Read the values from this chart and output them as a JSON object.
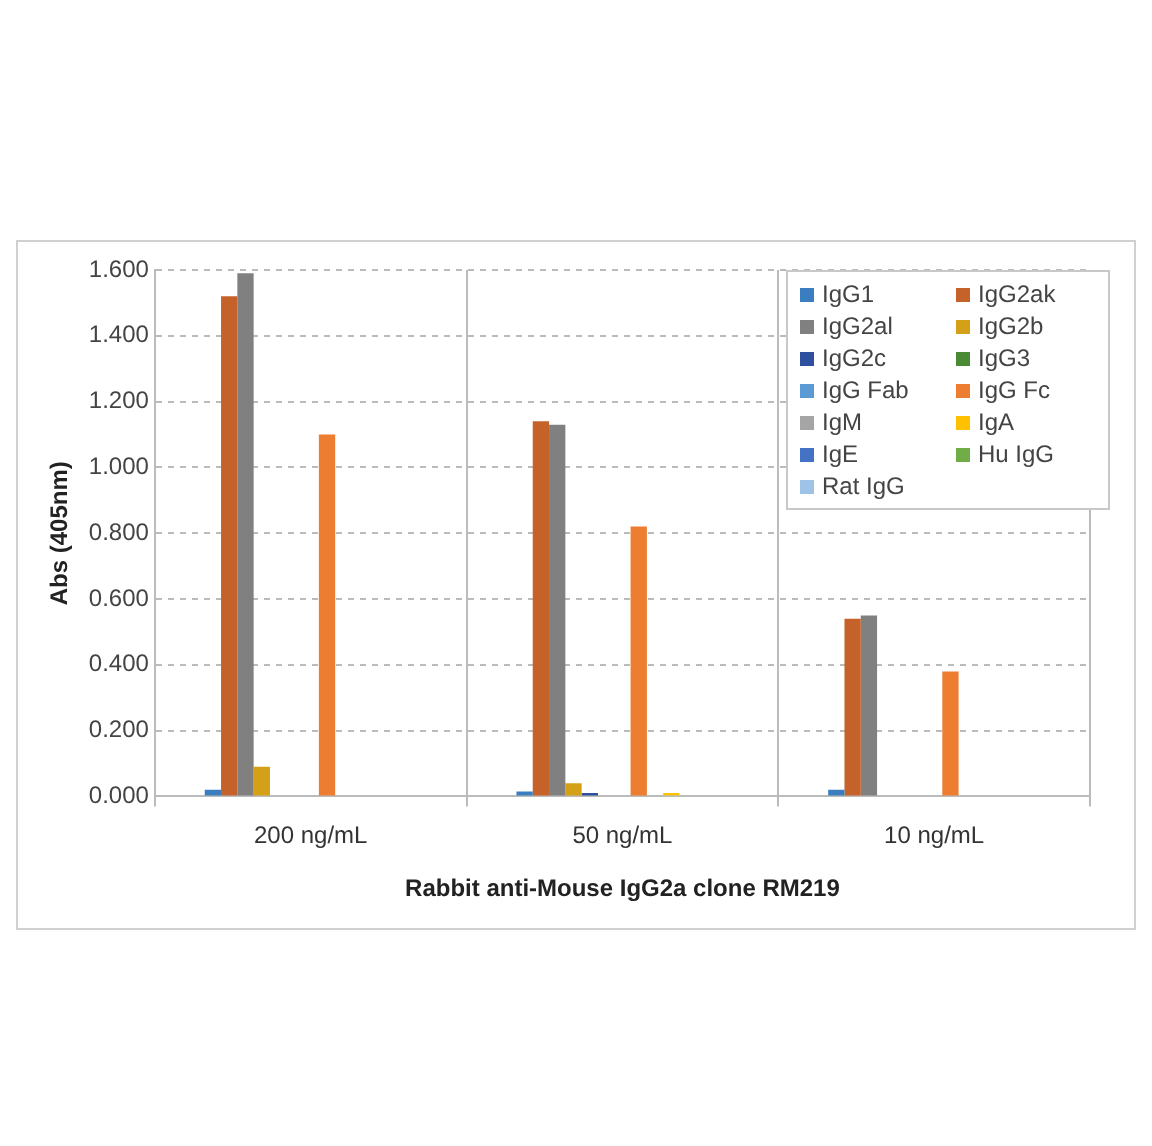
{
  "chart_data": {
    "type": "bar",
    "xlabel": "Rabbit anti-Mouse IgG2a clone RM219",
    "ylabel": "Abs (405nm)",
    "categories": [
      "200 ng/mL",
      "50 ng/mL",
      "10 ng/mL"
    ],
    "series": [
      {
        "name": "IgG1",
        "color": "#3a7ebf",
        "values": [
          0.02,
          0.015,
          0.02
        ]
      },
      {
        "name": "IgG2ak",
        "color": "#c5622a",
        "values": [
          1.52,
          1.14,
          0.54
        ]
      },
      {
        "name": "IgG2al",
        "color": "#808080",
        "values": [
          1.59,
          1.13,
          0.55
        ]
      },
      {
        "name": "IgG2b",
        "color": "#d4a017",
        "values": [
          0.09,
          0.04,
          0
        ]
      },
      {
        "name": "IgG2c",
        "color": "#2f4f9f",
        "values": [
          0,
          0.01,
          0
        ]
      },
      {
        "name": "IgG3",
        "color": "#4a8a34",
        "values": [
          0,
          0,
          0
        ]
      },
      {
        "name": "IgG Fab",
        "color": "#5b9bd5",
        "values": [
          0,
          0,
          0
        ]
      },
      {
        "name": "IgG Fc",
        "color": "#ed7d31",
        "values": [
          1.1,
          0.82,
          0.38
        ]
      },
      {
        "name": "IgM",
        "color": "#a5a5a5",
        "values": [
          0,
          0,
          0
        ]
      },
      {
        "name": "IgA",
        "color": "#ffc000",
        "values": [
          0,
          0.01,
          0
        ]
      },
      {
        "name": "IgE",
        "color": "#4472c4",
        "values": [
          0,
          0,
          0
        ]
      },
      {
        "name": "Hu IgG",
        "color": "#70ad47",
        "values": [
          0,
          0,
          0
        ]
      },
      {
        "name": "Rat IgG",
        "color": "#9dc3e6",
        "values": [
          0,
          0,
          0
        ]
      }
    ],
    "ylim": [
      0,
      1.6
    ],
    "yticks": [
      {
        "value": 0,
        "label": "0.000"
      },
      {
        "value": 0.2,
        "label": "0.200"
      },
      {
        "value": 0.4,
        "label": "0.400"
      },
      {
        "value": 0.6,
        "label": "0.600"
      },
      {
        "value": 0.8,
        "label": "0.800"
      },
      {
        "value": 1,
        "label": "1.000"
      },
      {
        "value": 1.2,
        "label": "1.200"
      },
      {
        "value": 1.4,
        "label": "1.400"
      },
      {
        "value": 1.6,
        "label": "1.600"
      }
    ],
    "grid": true,
    "legend": "top right"
  }
}
